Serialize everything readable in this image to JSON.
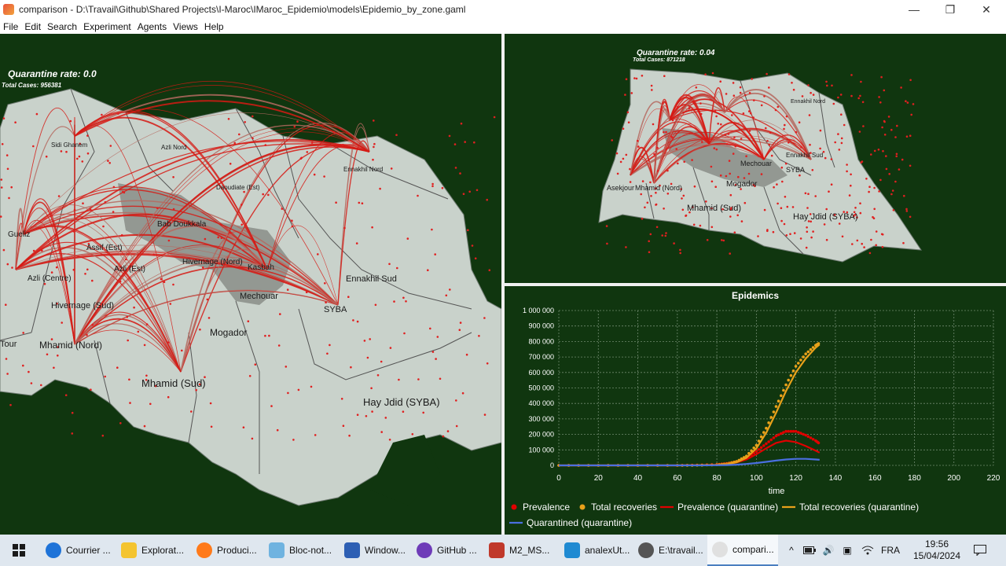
{
  "window": {
    "title": "comparison - D:\\Travail\\Github\\Shared Projects\\I-Maroc\\IMaroc_Epidemio\\models\\Epidemio_by_zone.gaml",
    "minimize": "—",
    "restore": "❐",
    "close": "✕"
  },
  "menu": [
    "File",
    "Edit",
    "Search",
    "Experiment",
    "Agents",
    "Views",
    "Help"
  ],
  "views": {
    "left": {
      "rate_title": "Quarantine rate: 0.0",
      "total_cases": "Total Cases: 956381",
      "labels": [
        "Sidi Ghanem",
        "Azli Nord",
        "Daoudiate (Est)",
        "Ennakhil Nord",
        "Gueliz",
        "Assif (Est)",
        "Bab Doukkala",
        "Azli (Est)",
        "Hivernage (Nord)",
        "Azli (Centre)",
        "Kasbah",
        "Ennakhil Sud",
        "Mechouar",
        "Hivernage (Sud)",
        "SYBA",
        "Mhamid (Nord)",
        "Mogador",
        "Tour",
        "Mhamid (Sud)",
        "Hay Jdid (SYBA)"
      ]
    },
    "top_right": {
      "rate_title": "Quarantine rate: 0.04",
      "total_cases": "Total Cases: 871218",
      "labels": [
        "Ennakhil Nord",
        "Ennakhil Sud",
        "Mechouar",
        "SYBA",
        "Mogador",
        "Mhamid (Nord)",
        "Mhamid (Sud)",
        "Hay Jdid (SYBA)",
        "Asekjour"
      ]
    }
  },
  "chart_data": {
    "type": "line",
    "title": "Epidemics",
    "xlabel": "time",
    "ylabel": "",
    "xlim": [
      0,
      220
    ],
    "ylim": [
      0,
      1000000
    ],
    "xticks": [
      0,
      20,
      40,
      60,
      80,
      100,
      120,
      140,
      160,
      180,
      200,
      220
    ],
    "yticks": [
      0,
      100000,
      200000,
      300000,
      400000,
      500000,
      600000,
      700000,
      800000,
      900000,
      1000000
    ],
    "ytick_labels": [
      "0",
      "100 000",
      "200 000",
      "300 000",
      "400 000",
      "500 000",
      "600 000",
      "700 000",
      "800 000",
      "900 000",
      "1 000 000"
    ],
    "grid": true,
    "legend_position": "bottom",
    "x": [
      0,
      20,
      40,
      60,
      70,
      80,
      85,
      90,
      95,
      100,
      105,
      110,
      115,
      120,
      125,
      130,
      132
    ],
    "series": [
      {
        "name": "Prevalence",
        "style": "dots",
        "color": "#e00000",
        "values": [
          0,
          0,
          0,
          0,
          2000,
          6000,
          12000,
          25000,
          50000,
          90000,
          140000,
          190000,
          220000,
          220000,
          195000,
          160000,
          140000
        ]
      },
      {
        "name": "Total recoveries",
        "style": "dots",
        "color": "#e8a11a",
        "values": [
          0,
          0,
          0,
          0,
          1000,
          4000,
          10000,
          25000,
          60000,
          130000,
          240000,
          380000,
          520000,
          640000,
          720000,
          775000,
          790000
        ]
      },
      {
        "name": "Prevalence (quarantine)",
        "style": "line",
        "color": "#e00000",
        "values": [
          0,
          0,
          0,
          0,
          1500,
          4000,
          9000,
          19000,
          38000,
          72000,
          110000,
          145000,
          160000,
          150000,
          125000,
          95000,
          82000
        ]
      },
      {
        "name": "Total recoveries (quarantine)",
        "style": "line",
        "color": "#e8a11a",
        "values": [
          0,
          0,
          0,
          0,
          800,
          3000,
          8000,
          20000,
          48000,
          110000,
          210000,
          340000,
          480000,
          600000,
          690000,
          760000,
          780000
        ]
      },
      {
        "name": "Quarantined (quarantine)",
        "style": "line",
        "color": "#4a6fe0",
        "values": [
          0,
          0,
          0,
          0,
          200,
          800,
          2000,
          4500,
          9000,
          15000,
          23000,
          31000,
          38000,
          42000,
          42000,
          38000,
          36000
        ]
      }
    ],
    "colors": {
      "background": "#10360f",
      "grid": "#6f8a6f",
      "axis_text": "#ffffff"
    }
  },
  "taskbar": {
    "items": [
      {
        "label": "Courrier ...",
        "color": "#1e73d8",
        "shape": "circle"
      },
      {
        "label": "Explorat...",
        "color": "#f4c430",
        "shape": "square"
      },
      {
        "label": "Produci...",
        "color": "#ff7a1a",
        "shape": "circle"
      },
      {
        "label": "Bloc-not...",
        "color": "#6fb3e0",
        "shape": "square"
      },
      {
        "label": "Window...",
        "color": "#2d5fb4",
        "shape": "square"
      },
      {
        "label": "GitHub ...",
        "color": "#6e3bb8",
        "shape": "circle"
      },
      {
        "label": "M2_MS...",
        "color": "#c0392b",
        "shape": "square"
      },
      {
        "label": "analexUt...",
        "color": "#1f8ad2",
        "shape": "square"
      },
      {
        "label": "E:\\travail...",
        "color": "#555555",
        "shape": "circle"
      },
      {
        "label": "compari...",
        "color": "#e0e0e0",
        "shape": "circle",
        "active": true
      }
    ],
    "language": "FRA",
    "time": "19:56",
    "date": "15/04/2024",
    "tray_icons": [
      "chevron-up-icon",
      "battery-icon",
      "speaker-icon",
      "camera-icon",
      "wifi-icon"
    ]
  }
}
